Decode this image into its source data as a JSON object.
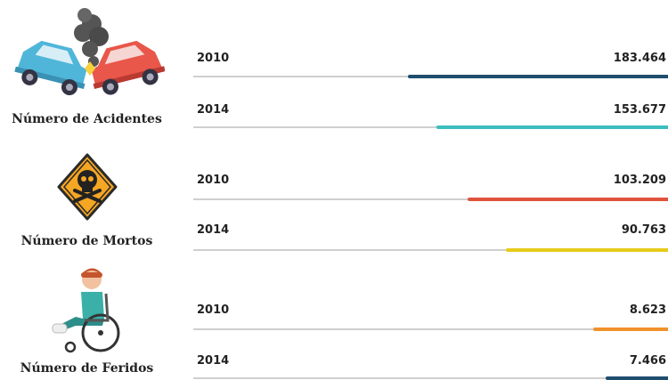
{
  "groups": [
    {
      "label": "Número de Acidentes",
      "rows": [
        {
          "year": "2010",
          "value": "183.464"
        },
        {
          "year": "2014",
          "value": "153.677"
        }
      ]
    },
    {
      "label": "Número de Mortos",
      "rows": [
        {
          "year": "2010",
          "value": "103.209"
        },
        {
          "year": "2014",
          "value": "90.763"
        }
      ]
    },
    {
      "label": "Número de Feridos",
      "rows": [
        {
          "year": "2010",
          "value": "8.623"
        },
        {
          "year": "2014",
          "value": "7.466"
        }
      ]
    }
  ]
}
